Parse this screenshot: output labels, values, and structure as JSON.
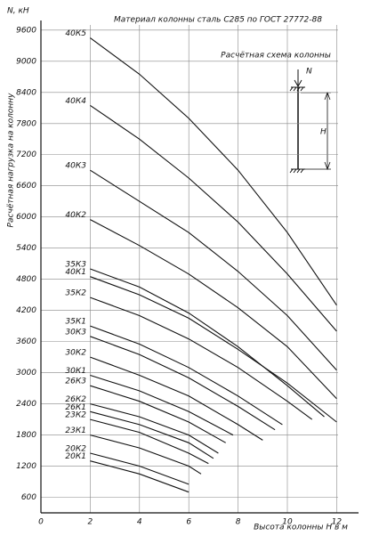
{
  "chart_data": {
    "type": "line",
    "title": "Материал колонны  сталь С285 по ГОСТ 27772-88",
    "y_unit": "N, кН",
    "ylabel": "Расчётная нагрузка на колонну",
    "xlabel": "Высота колонны H в м",
    "xlim": [
      0,
      12.6
    ],
    "ylim": [
      300,
      9700
    ],
    "xticks": [
      0,
      2,
      4,
      6,
      8,
      10,
      12
    ],
    "yticks": [
      600,
      1200,
      1800,
      2400,
      3000,
      3600,
      4200,
      4800,
      5400,
      6000,
      6600,
      7200,
      7800,
      8400,
      9000,
      9600
    ],
    "grid": true,
    "series": [
      {
        "name": "40К5",
        "color": "#111111",
        "x": [
          2,
          4,
          6,
          8,
          10,
          12
        ],
        "values": [
          9450,
          8750,
          7900,
          6900,
          5700,
          4300
        ]
      },
      {
        "name": "40К4",
        "color": "#111111",
        "x": [
          2,
          4,
          6,
          8,
          10,
          12
        ],
        "values": [
          8150,
          7500,
          6750,
          5900,
          4900,
          3800
        ]
      },
      {
        "name": "40К3",
        "color": "#111111",
        "x": [
          2,
          4,
          6,
          8,
          10,
          12
        ],
        "values": [
          6900,
          6300,
          5700,
          4950,
          4100,
          3050
        ]
      },
      {
        "name": "40К2",
        "color": "#111111",
        "x": [
          2,
          4,
          6,
          8,
          10,
          12
        ],
        "values": [
          5950,
          5450,
          4900,
          4250,
          3500,
          2500
        ]
      },
      {
        "name": "35К3",
        "color": "#111111",
        "x": [
          2,
          4,
          6,
          8,
          10,
          11.5
        ],
        "values": [
          5000,
          4650,
          4150,
          3500,
          2750,
          2150
        ]
      },
      {
        "name": "40К1",
        "color": "#111111",
        "x": [
          2,
          4,
          6,
          8,
          10,
          12
        ],
        "values": [
          4850,
          4500,
          4050,
          3450,
          2800,
          2050
        ]
      },
      {
        "name": "35К2",
        "color": "#111111",
        "x": [
          2,
          4,
          6,
          8,
          10,
          11
        ],
        "values": [
          4450,
          4100,
          3650,
          3100,
          2450,
          2100
        ]
      },
      {
        "name": "35К1",
        "color": "#111111",
        "x": [
          2,
          4,
          6,
          8,
          9.8
        ],
        "values": [
          3900,
          3550,
          3100,
          2550,
          2000
        ]
      },
      {
        "name": "30К3",
        "color": "#111111",
        "x": [
          2,
          4,
          6,
          8,
          9.5
        ],
        "values": [
          3700,
          3350,
          2900,
          2350,
          1900
        ]
      },
      {
        "name": "30К2",
        "color": "#111111",
        "x": [
          2,
          4,
          6,
          8,
          9
        ],
        "values": [
          3300,
          2950,
          2550,
          2000,
          1700
        ]
      },
      {
        "name": "30К1",
        "color": "#111111",
        "x": [
          2,
          4,
          6,
          7.8
        ],
        "values": [
          2950,
          2650,
          2250,
          1800
        ]
      },
      {
        "name": "26К3",
        "color": "#111111",
        "x": [
          2,
          4,
          6,
          7.5
        ],
        "values": [
          2750,
          2450,
          2050,
          1650
        ]
      },
      {
        "name": "26К2",
        "color": "#111111",
        "x": [
          2,
          4,
          6,
          7.2
        ],
        "values": [
          2400,
          2150,
          1800,
          1450
        ]
      },
      {
        "name": "26К1",
        "color": "#111111",
        "x": [
          2,
          4,
          6,
          7
        ],
        "values": [
          2250,
          2000,
          1650,
          1350
        ]
      },
      {
        "name": "23К2",
        "color": "#111111",
        "x": [
          2,
          4,
          6,
          6.8
        ],
        "values": [
          2100,
          1850,
          1450,
          1250
        ]
      },
      {
        "name": "23К1",
        "color": "#111111",
        "x": [
          2,
          4,
          6,
          6.5
        ],
        "values": [
          1800,
          1550,
          1200,
          1050
        ]
      },
      {
        "name": "20К2",
        "color": "#111111",
        "x": [
          2,
          4,
          6
        ],
        "values": [
          1450,
          1200,
          850
        ]
      },
      {
        "name": "20К1",
        "color": "#111111",
        "x": [
          2,
          4,
          6
        ],
        "values": [
          1300,
          1050,
          700
        ]
      }
    ],
    "scheme": {
      "title": "Расчётная схема колонны",
      "force": "N",
      "height": "H"
    }
  }
}
